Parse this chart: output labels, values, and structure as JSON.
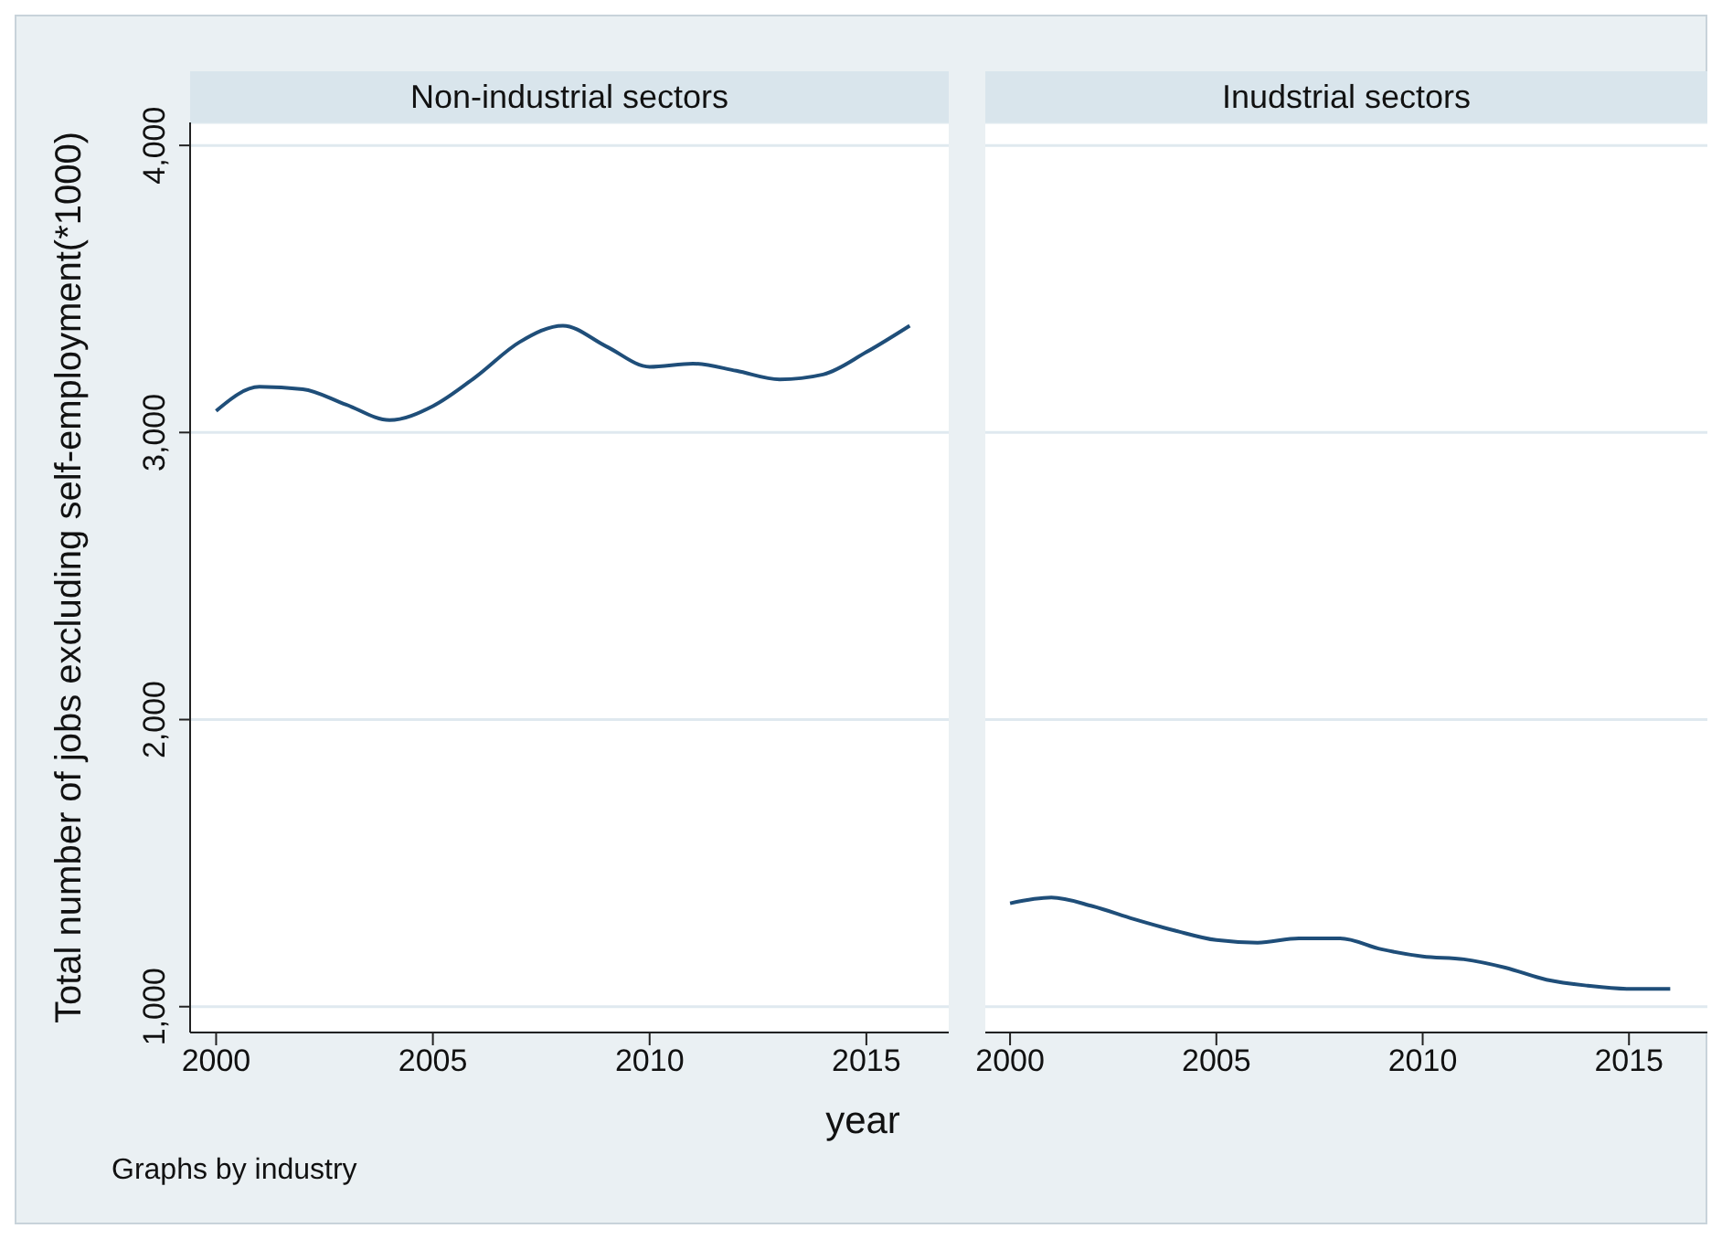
{
  "chart_data": [
    {
      "type": "line",
      "title": "Non-industrial sectors",
      "ylabel": "Total number of jobs excluding self-employment(*1000)",
      "annotations": [
        "Graphs by industry"
      ],
      "x": [
        2000,
        2001,
        2002,
        2003,
        2004,
        2005,
        2006,
        2007,
        2008,
        2009,
        2010,
        2011,
        2012,
        2013,
        2014,
        2015,
        2016
      ],
      "series": [
        {
          "color": "#1f4e79",
          "values": [
            3075,
            3159,
            3151,
            3097,
            3043,
            3092,
            3195,
            3315,
            3372,
            3300,
            3229,
            3240,
            3215,
            3185,
            3202,
            3280,
            3372
          ]
        }
      ],
      "xlim": [
        1999.4,
        2016.9
      ],
      "xticks": [
        2000,
        2005,
        2010,
        2015
      ],
      "ylim": [
        910,
        4080
      ],
      "yticks": [
        {
          "value": 1000,
          "label": "1,000"
        },
        {
          "value": 2000,
          "label": "2,000"
        },
        {
          "value": 3000,
          "label": "3,000"
        },
        {
          "value": 4000,
          "label": "4,000"
        }
      ],
      "grid": "y",
      "marker": "none",
      "line_style": "solid"
    },
    {
      "type": "line",
      "title": "Inudstrial sectors",
      "xlabel": "year",
      "x": [
        2000,
        2001,
        2002,
        2003,
        2004,
        2005,
        2006,
        2007,
        2008,
        2009,
        2010,
        2011,
        2012,
        2013,
        2014,
        2015,
        2016
      ],
      "series": [
        {
          "color": "#1f4e79",
          "values": [
            1360,
            1380,
            1350,
            1305,
            1265,
            1232,
            1223,
            1238,
            1238,
            1200,
            1175,
            1165,
            1136,
            1094,
            1073,
            1062,
            1062
          ]
        }
      ],
      "xlim": [
        1999.4,
        2016.9
      ],
      "xticks": [
        2000,
        2005,
        2010,
        2015
      ],
      "ylim": [
        910,
        4080
      ],
      "yticks": [
        1000,
        2000,
        3000,
        4000
      ],
      "grid": "y",
      "marker": "none",
      "line_style": "solid",
      "tick_labels": "x"
    }
  ]
}
